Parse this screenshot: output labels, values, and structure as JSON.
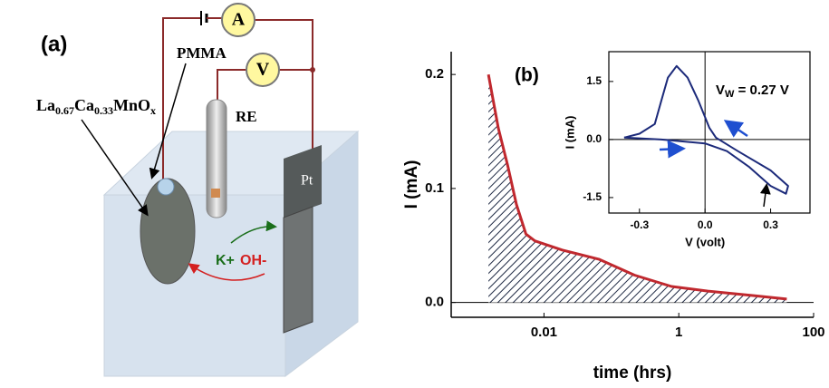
{
  "diagram": {
    "panel_label": "(a)",
    "pmma": "PMMA",
    "re": "RE",
    "pt": "Pt",
    "ammeter": "A",
    "voltmeter": "V",
    "cation": "K+",
    "anion": "OH-",
    "formula": [
      {
        "t": "La",
        "sub": "0.67"
      },
      {
        "t": "Ca",
        "sub": "0.33"
      },
      {
        "t": "MnO",
        "sub": "x"
      }
    ]
  },
  "chart_data": [
    {
      "type": "line",
      "panel_label": "(b)",
      "xlabel": "time (hrs)",
      "ylabel": "I (mA)",
      "xscale": "log",
      "xlim": [
        0.00042,
        100
      ],
      "xticks": [
        0.01,
        1,
        100
      ],
      "ylim": [
        -0.013,
        0.22
      ],
      "yticks": [
        {
          "value": 0,
          "label": "0.0"
        },
        0.1,
        0.2
      ],
      "zero_line": true,
      "fill": "hatch",
      "color": "#c0282e",
      "x": [
        0.0015,
        0.0021,
        0.0029,
        0.0039,
        0.0054,
        0.0073,
        0.0186,
        0.065,
        0.22,
        0.78,
        2.7,
        13,
        40
      ],
      "values": [
        0.2,
        0.153,
        0.12,
        0.086,
        0.06,
        0.054,
        0.046,
        0.038,
        0.024,
        0.014,
        0.01,
        0.006,
        0.003
      ]
    },
    {
      "type": "line",
      "xlabel": "V (volt)",
      "ylabel": "I (mA)",
      "annotation": {
        "main": "V",
        "sub": "W",
        "tail": " = 0.27 V"
      },
      "xlim": [
        -0.44,
        0.48
      ],
      "xticks": [
        -0.3,
        {
          "value": 0,
          "label": "0.0"
        },
        0.3
      ],
      "ylim": [
        -1.9,
        2.27
      ],
      "yticks": [
        -1.5,
        {
          "value": 0,
          "label": "0.0"
        },
        1.5
      ],
      "crosshair": true,
      "color": "#1c2a7a",
      "x": [
        -0.37,
        -0.2,
        0.0,
        0.1,
        0.2,
        0.3,
        0.37,
        0.38,
        0.3,
        0.15,
        0.05,
        0.02,
        -0.03,
        -0.08,
        -0.13,
        -0.17,
        -0.2,
        -0.23,
        -0.3,
        -0.37
      ],
      "values": [
        0.05,
        0.0,
        -0.1,
        -0.3,
        -0.7,
        -1.2,
        -1.4,
        -1.2,
        -0.8,
        -0.3,
        0.05,
        0.3,
        1.0,
        1.6,
        1.9,
        1.6,
        1.0,
        0.4,
        0.15,
        0.05
      ]
    }
  ]
}
